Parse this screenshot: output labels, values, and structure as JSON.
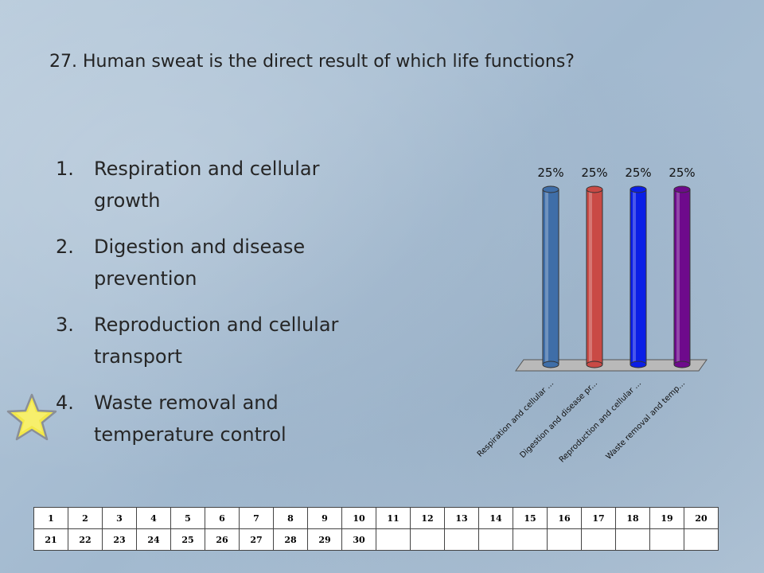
{
  "question": {
    "title": "27. Human sweat is the direct result of which life functions?"
  },
  "options": [
    {
      "number": "1.",
      "text": "Respiration and cellular growth"
    },
    {
      "number": "2.",
      "text": "Digestion and disease prevention"
    },
    {
      "number": "3.",
      "text": "Reproduction and cellular transport"
    },
    {
      "number": "4.",
      "text": "Waste removal and temperature control"
    }
  ],
  "marker": {
    "icon": "star-icon",
    "color": "#f3e84a"
  },
  "chart_data": {
    "type": "bar",
    "categories": [
      "Respiration and cellular ...",
      "Digestion and disease pr...",
      "Reproduction and cellular ...",
      "Waste removal and temp..."
    ],
    "values": [
      25,
      25,
      25,
      25
    ],
    "data_labels": [
      "25%",
      "25%",
      "25%",
      "25%"
    ],
    "colors": [
      "#3f6ea8",
      "#c94a45",
      "#0a1ee6",
      "#6e0a8c"
    ],
    "ylim": [
      0,
      25
    ],
    "grid": false,
    "legend": "none"
  },
  "response_grid": {
    "rows": [
      [
        "1",
        "2",
        "3",
        "4",
        "5",
        "6",
        "7",
        "8",
        "9",
        "10",
        "11",
        "12",
        "13",
        "14",
        "15",
        "16",
        "17",
        "18",
        "19",
        "20"
      ],
      [
        "21",
        "22",
        "23",
        "24",
        "25",
        "26",
        "27",
        "28",
        "29",
        "30",
        "",
        "",
        "",
        "",
        "",
        "",
        "",
        "",
        "",
        ""
      ]
    ]
  }
}
